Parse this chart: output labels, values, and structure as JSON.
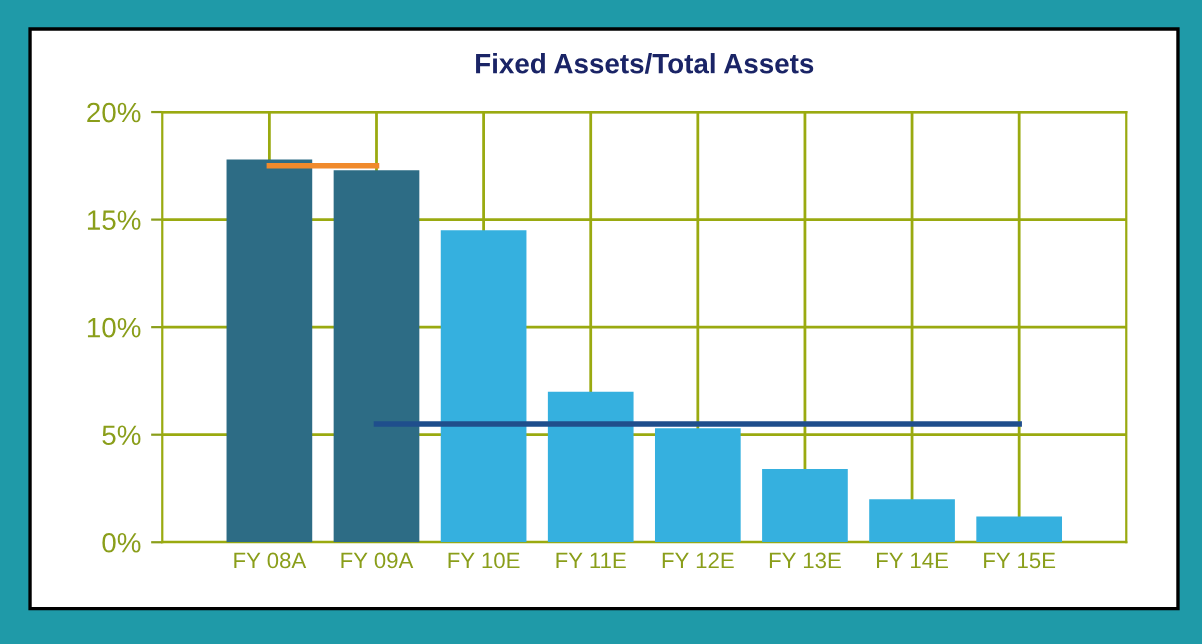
{
  "chart_data": {
    "type": "bar",
    "title": "Fixed Assets/Total Assets",
    "categories": [
      "FY 08A",
      "FY 09A",
      "FY 10E",
      "FY 11E",
      "FY 12E",
      "FY 13E",
      "FY 14E",
      "FY 15E"
    ],
    "series": [
      {
        "colors": [
          "#2d6c85",
          "#2d6c85",
          "#35b0df",
          "#35b0df",
          "#35b0df",
          "#35b0df",
          "#35b0df",
          "#35b0df"
        ],
        "values": [
          17.8,
          17.3,
          14.5,
          7.0,
          5.3,
          3.4,
          2.0,
          1.2
        ]
      },
      {
        "type": "line",
        "color": "#f08a2c",
        "values": [
          17.5,
          17.5,
          null,
          null,
          null,
          null,
          null,
          null
        ]
      },
      {
        "type": "line",
        "color": "#1f4e8c",
        "values": [
          null,
          5.5,
          5.5,
          5.5,
          5.5,
          5.5,
          5.5,
          5.5
        ]
      }
    ],
    "ylim": [
      0,
      20
    ],
    "yticks": [
      {
        "value": 0,
        "label": "0%"
      },
      {
        "value": 5,
        "label": "5%"
      },
      {
        "value": 10,
        "label": "10%"
      },
      {
        "value": 15,
        "label": "15%"
      },
      {
        "value": 20,
        "label": "20%"
      }
    ],
    "grid": true
  }
}
